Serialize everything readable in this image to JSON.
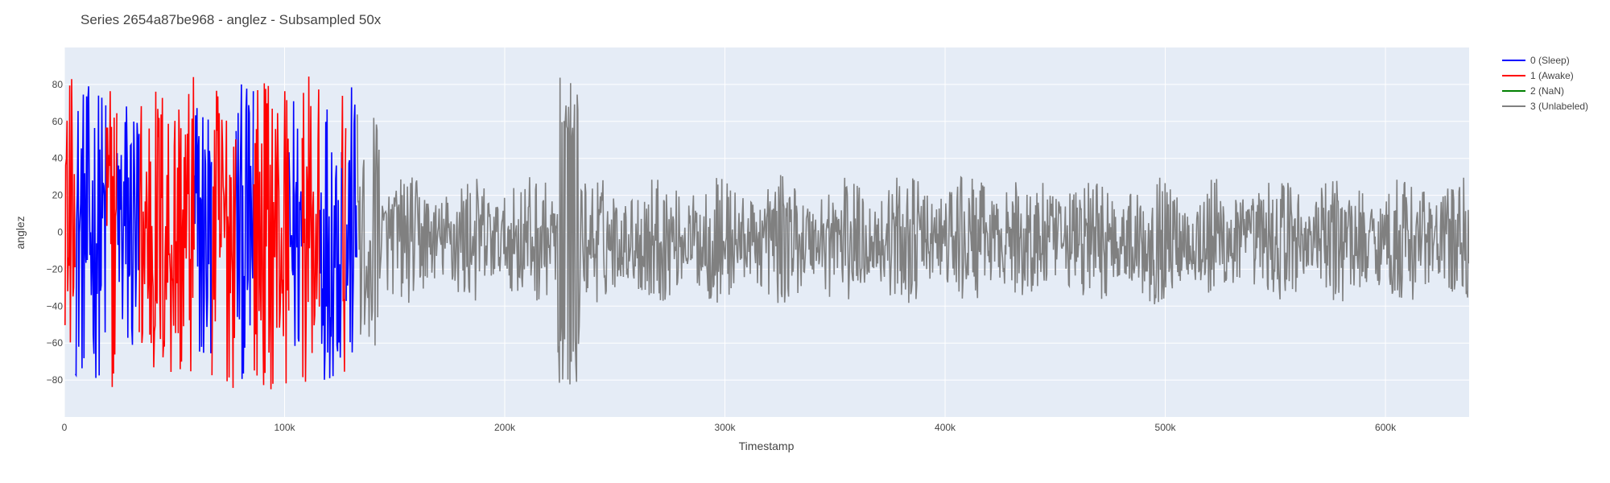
{
  "chart_data": {
    "type": "line",
    "title": "Series 2654a87be968 - anglez - Subsampled 50x",
    "xlabel": "Timestamp",
    "ylabel": "anglez",
    "xlim": [
      0,
      638000
    ],
    "ylim": [
      -100,
      100
    ],
    "x_ticks": [
      0,
      100000,
      200000,
      300000,
      400000,
      500000,
      600000
    ],
    "x_tick_labels": [
      "0",
      "100k",
      "200k",
      "300k",
      "400k",
      "500k",
      "600k"
    ],
    "y_ticks": [
      -80,
      -60,
      -40,
      -20,
      0,
      20,
      40,
      60,
      80
    ],
    "y_tick_labels": [
      "−80",
      "−60",
      "−40",
      "−20",
      "0",
      "20",
      "40",
      "60",
      "80"
    ],
    "grid": true,
    "legend_position": "right",
    "series": [
      {
        "name": "0 (Sleep)",
        "color": "#0000ff",
        "segments": [
          [
            5000,
            19000
          ],
          [
            24000,
            34000
          ],
          [
            59000,
            67000
          ],
          [
            78000,
            86000
          ],
          [
            102000,
            108000
          ],
          [
            116000,
            126000
          ],
          [
            128000,
            133000
          ]
        ],
        "amplitude": 80
      },
      {
        "name": "1 (Awake)",
        "color": "#ff0000",
        "segments": [
          [
            0,
            5000
          ],
          [
            19000,
            24000
          ],
          [
            34000,
            59000
          ],
          [
            67000,
            78000
          ],
          [
            86000,
            102000
          ],
          [
            108000,
            116000
          ],
          [
            126000,
            128000
          ]
        ],
        "amplitude": 85
      },
      {
        "name": "2 (NaN)",
        "color": "#008000",
        "segments": [],
        "amplitude": 0
      },
      {
        "name": "3 (Unlabeled)",
        "color": "#808080",
        "segments": [
          [
            133000,
            638000
          ]
        ],
        "amplitude": 35,
        "spike": {
          "center": 229000,
          "width": 10000,
          "peak": 84,
          "trough": -83
        }
      }
    ]
  }
}
